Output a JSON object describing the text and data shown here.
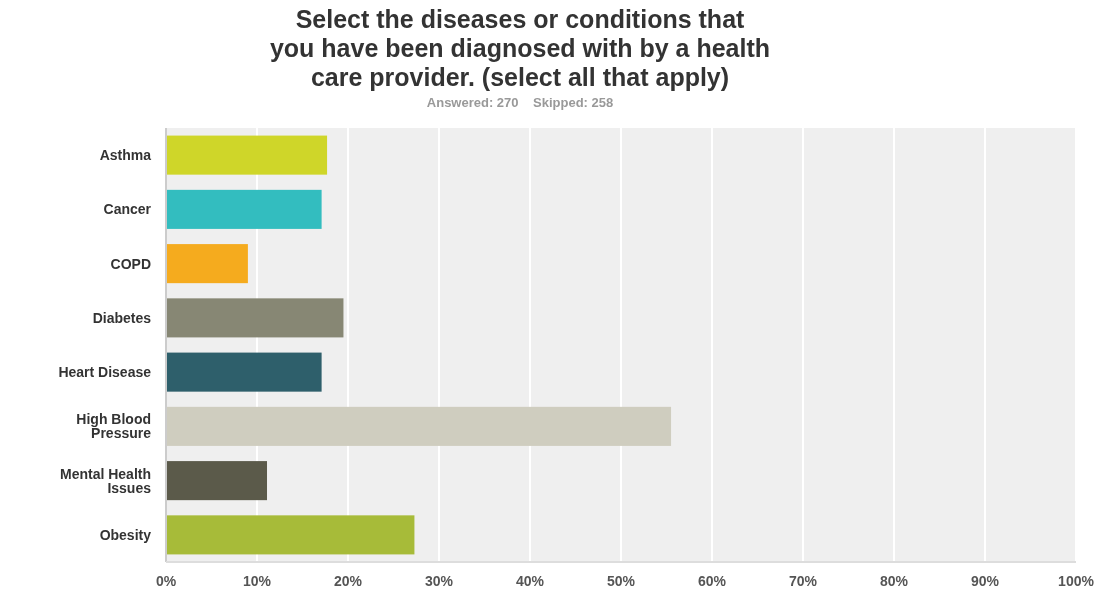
{
  "chart_data": {
    "type": "bar",
    "orientation": "horizontal",
    "title": "Select the diseases or conditions that\nyou have been diagnosed with by a health\ncare provider. (select all that apply)",
    "subtitle": "Answered: 270    Skipped: 258",
    "categories": [
      "Asthma",
      "Cancer",
      "COPD",
      "Diabetes",
      "Heart Disease",
      "High Blood\nPressure",
      "Mental Health\nIssues",
      "Obesity"
    ],
    "values": [
      17.7,
      17.1,
      9.0,
      19.5,
      17.1,
      55.5,
      11.1,
      27.3
    ],
    "colors": [
      "#cfd629",
      "#33bdbf",
      "#f5ab1e",
      "#878774",
      "#2e5f6b",
      "#cfcdbf",
      "#5b5a4a",
      "#a7bb39"
    ],
    "xlim": [
      0,
      100
    ],
    "xticks": [
      {
        "value": 0,
        "label": "0%"
      },
      {
        "value": 10,
        "label": "10%"
      },
      {
        "value": 20,
        "label": "20%"
      },
      {
        "value": 30,
        "label": "30%"
      },
      {
        "value": 40,
        "label": "40%"
      },
      {
        "value": 50,
        "label": "50%"
      },
      {
        "value": 60,
        "label": "60%"
      },
      {
        "value": 70,
        "label": "70%"
      },
      {
        "value": 80,
        "label": "80%"
      },
      {
        "value": 90,
        "label": "90%"
      },
      {
        "value": 100,
        "label": "100%"
      }
    ],
    "grid": "x"
  }
}
